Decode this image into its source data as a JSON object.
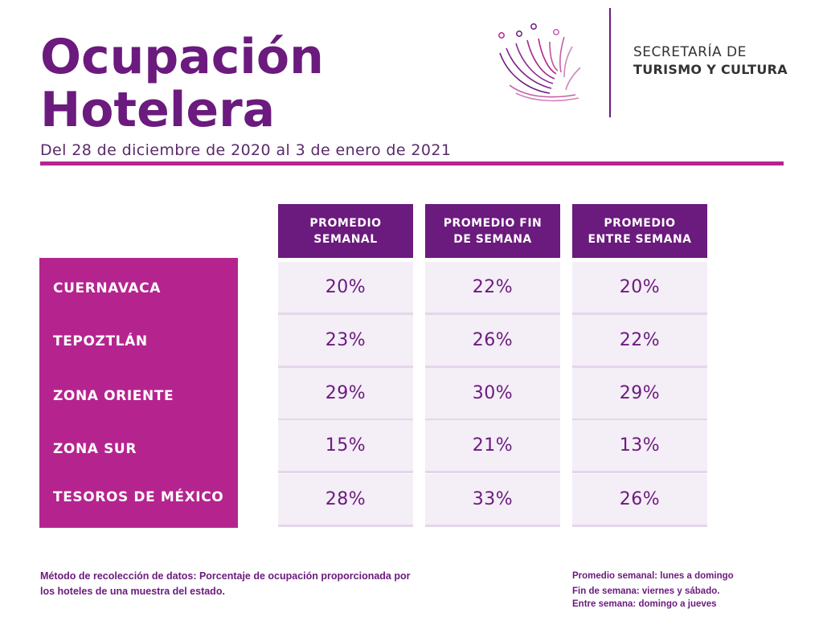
{
  "header": {
    "title_line1": "Ocupación",
    "title_line2": "Hotelera",
    "subtitle": "Del 28 de diciembre de 2020 al 3 de enero de 2021"
  },
  "org": {
    "line1": "SECRETARÍA DE",
    "line2": "TURISMO Y CULTURA"
  },
  "table": {
    "columns": [
      {
        "line1": "PROMEDIO",
        "line2": "SEMANAL"
      },
      {
        "line1": "PROMEDIO FIN",
        "line2": "DE SEMANA"
      },
      {
        "line1": "PROMEDIO",
        "line2": "ENTRE SEMANA"
      }
    ],
    "rows": [
      {
        "label": "CUERNAVACA",
        "values": [
          "20%",
          "22%",
          "20%"
        ]
      },
      {
        "label": "TEPOZTLÁN",
        "values": [
          "23%",
          "26%",
          "22%"
        ]
      },
      {
        "label": "ZONA ORIENTE",
        "values": [
          "29%",
          "30%",
          "29%"
        ]
      },
      {
        "label": "ZONA SUR",
        "values": [
          "15%",
          "21%",
          "13%"
        ]
      },
      {
        "label": "TESOROS DE MÉXICO",
        "values": [
          "28%",
          "33%",
          "26%"
        ]
      }
    ]
  },
  "footer": {
    "method_line1": "Método de recolección de datos: Porcentaje de ocupación proporcionada por",
    "method_line2": "los hoteles de una muestra del estado.",
    "legend1": "Promedio semanal: lunes a domingo",
    "legend2": "Fin de semana: viernes y sábado.",
    "legend3": "Entre semana: domingo a jueves"
  },
  "colors": {
    "primary": "#6b1a7d",
    "accent": "#b5248e",
    "cell_bg": "#f4eef7"
  },
  "icons": {
    "logo": "lotus-flower-logo"
  }
}
